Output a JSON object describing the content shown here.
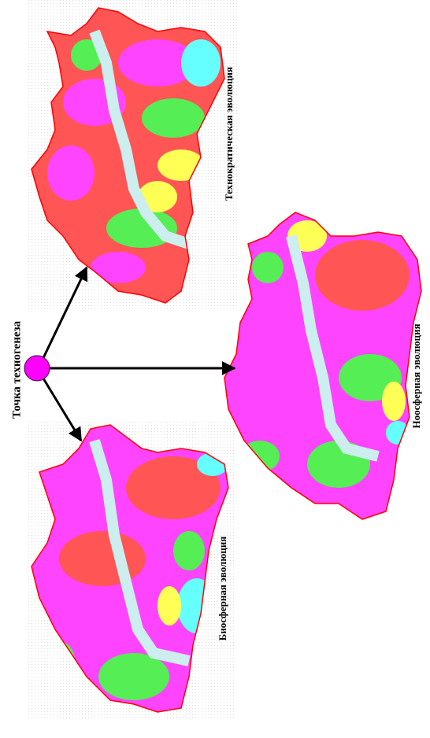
{
  "title": "Точка техногенеза",
  "maps": [
    {
      "label": "Технократическая эволюция"
    },
    {
      "label": "Биосферная эволюция"
    },
    {
      "label": "Ноосферная эволюция"
    }
  ]
}
